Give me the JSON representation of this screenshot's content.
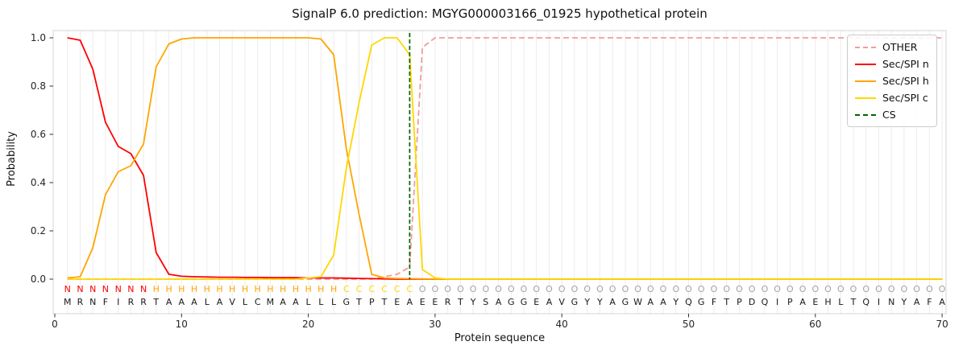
{
  "title": "SignalP 6.0 prediction: MGYG000003166_01925 hypothetical protein",
  "axes": {
    "xlabel": "Protein sequence",
    "ylabel": "Probability",
    "x_ticks": [
      0,
      10,
      20,
      30,
      40,
      50,
      60,
      70
    ],
    "y_ticks": [
      "0.0",
      "0.2",
      "0.4",
      "0.6",
      "0.8",
      "1.0"
    ]
  },
  "legend": {
    "entries": [
      {
        "label": "OTHER",
        "color": "#f29c9c",
        "dash": true
      },
      {
        "label": "Sec/SPI n",
        "color": "#ff0000",
        "dash": false
      },
      {
        "label": "Sec/SPI h",
        "color": "#ffa500",
        "dash": false
      },
      {
        "label": "Sec/SPI c",
        "color": "#ffd700",
        "dash": false
      },
      {
        "label": "CS",
        "color": "#006400",
        "dash": true
      }
    ]
  },
  "chart_data": {
    "type": "line",
    "title": "SignalP 6.0 prediction: MGYG000003166_01925 hypothetical protein",
    "xlabel": "Protein sequence",
    "ylabel": "Probability",
    "xlim": [
      0,
      70
    ],
    "ylim": [
      0,
      1
    ],
    "grid": "vertical line per residue",
    "legend_position": "upper right",
    "x_start": 1,
    "cs_position": 28,
    "cs_color": "#006400",
    "sequence": "MRNFIRRTAAALAVLCMAALLLGTPTEAEERTYSAGGEAVGYYAGWAAYQGFTPDQIPAEHLTQINYAFA",
    "regions": "NNNNNNNHHHHHHHHHHHHHHHCCCCCCOOOOOOOOOOOOOOOOOOOOOOOOOOOOOOOOOOOOOOOOOO",
    "region_colors": {
      "N": "#ff0000",
      "H": "#ffa500",
      "C": "#ffd700",
      "O": "#a3a3a3"
    },
    "series": [
      {
        "name": "OTHER",
        "color": "#f29c9c",
        "dash": [
          7,
          4
        ],
        "values": [
          0,
          0,
          0,
          0,
          0,
          0,
          0,
          0,
          0,
          0,
          0,
          0,
          0,
          0,
          0,
          0,
          0,
          0,
          0,
          0,
          0,
          0,
          0,
          0,
          0,
          0.01,
          0.02,
          0.05,
          0.96,
          1,
          1,
          1,
          1,
          1,
          1,
          1,
          1,
          1,
          1,
          1,
          1,
          1,
          1,
          1,
          1,
          1,
          1,
          1,
          1,
          1,
          1,
          1,
          1,
          1,
          1,
          1,
          1,
          1,
          1,
          1,
          1,
          1,
          1,
          1,
          1,
          1,
          1,
          1,
          1,
          1
        ]
      },
      {
        "name": "Sec/SPI n",
        "color": "#ff0000",
        "dash": null,
        "values": [
          1,
          0.99,
          0.87,
          0.65,
          0.55,
          0.52,
          0.43,
          0.11,
          0.02,
          0.012,
          0.01,
          0.009,
          0.008,
          0.008,
          0.007,
          0.007,
          0.006,
          0.006,
          0.006,
          0.005,
          0.005,
          0.005,
          0.004,
          0.003,
          0.002,
          0.001,
          0,
          0,
          0,
          0,
          0,
          0,
          0,
          0,
          0,
          0,
          0,
          0,
          0,
          0,
          0,
          0,
          0,
          0,
          0,
          0,
          0,
          0,
          0,
          0,
          0,
          0,
          0,
          0,
          0,
          0,
          0,
          0,
          0,
          0,
          0,
          0,
          0,
          0,
          0,
          0,
          0,
          0,
          0,
          0
        ]
      },
      {
        "name": "Sec/SPI h",
        "color": "#ffa500",
        "dash": null,
        "values": [
          0.005,
          0.01,
          0.13,
          0.35,
          0.445,
          0.47,
          0.56,
          0.88,
          0.975,
          0.995,
          1,
          1,
          1,
          1,
          1,
          1,
          1,
          1,
          1,
          1,
          0.995,
          0.93,
          0.54,
          0.27,
          0.02,
          0.005,
          0.003,
          0.002,
          0.001,
          0,
          0,
          0,
          0,
          0,
          0,
          0,
          0,
          0,
          0,
          0,
          0,
          0,
          0,
          0,
          0,
          0,
          0,
          0,
          0,
          0,
          0,
          0,
          0,
          0,
          0,
          0,
          0,
          0,
          0,
          0,
          0,
          0,
          0,
          0,
          0,
          0,
          0,
          0,
          0,
          0
        ]
      },
      {
        "name": "Sec/SPI c",
        "color": "#ffd700",
        "dash": null,
        "values": [
          0,
          0,
          0,
          0,
          0,
          0,
          0,
          0,
          0,
          0,
          0,
          0,
          0,
          0,
          0,
          0,
          0,
          0,
          0,
          0.005,
          0.01,
          0.1,
          0.46,
          0.73,
          0.97,
          1,
          1,
          0.93,
          0.04,
          0.005,
          0,
          0,
          0,
          0,
          0,
          0,
          0,
          0,
          0,
          0,
          0,
          0,
          0,
          0,
          0,
          0,
          0,
          0,
          0,
          0,
          0,
          0,
          0,
          0,
          0,
          0,
          0,
          0,
          0,
          0,
          0,
          0,
          0,
          0,
          0,
          0,
          0,
          0,
          0,
          0
        ]
      }
    ]
  }
}
